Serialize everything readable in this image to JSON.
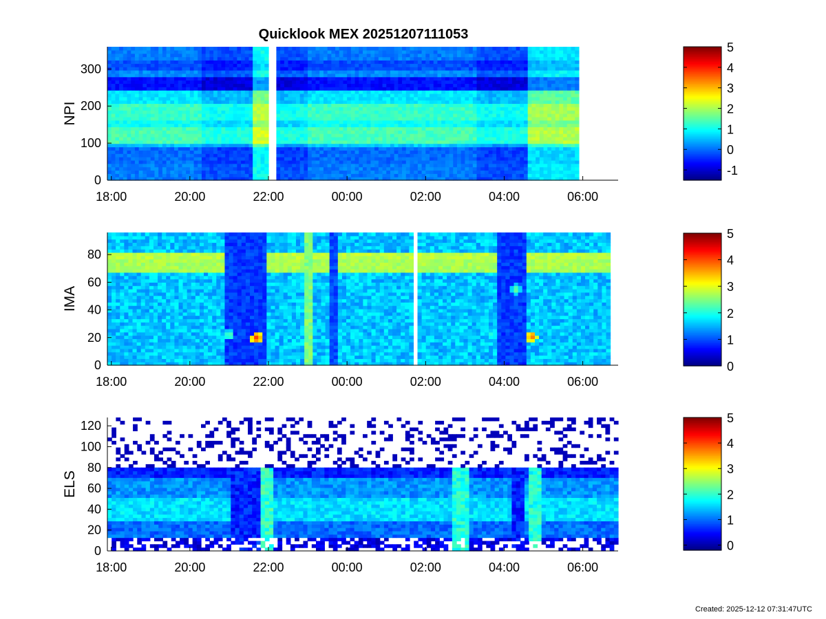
{
  "figure": {
    "title": "Quicklook MEX 20251207111053",
    "footer": "Created: 2025-12-12 07:31:47UTC"
  },
  "colormap": [
    "#00007f",
    "#0000ff",
    "#007fff",
    "#00ffff",
    "#7fff7f",
    "#ffff00",
    "#ff7f00",
    "#ff0000",
    "#7f0000"
  ],
  "chart_data": [
    {
      "type": "heatmap",
      "ylabel": "NPI",
      "xticks": [
        "18:00",
        "20:00",
        "22:00",
        "00:00",
        "02:00",
        "04:00",
        "06:00"
      ],
      "xlim_hours": [
        17.9,
        30.9
      ],
      "ylim": [
        0,
        360
      ],
      "yticks": [
        0,
        100,
        200,
        300
      ],
      "data_hours": [
        17.9,
        29.9
      ],
      "gaps_hours": [
        [
          22.0,
          22.2
        ]
      ],
      "colorbar": {
        "range": [
          -1.5,
          5
        ],
        "ticks": [
          -1,
          0,
          1,
          2,
          3,
          4,
          5
        ]
      },
      "bands": [
        {
          "y": [
            0,
            45
          ],
          "value": 0.1
        },
        {
          "y": [
            45,
            90
          ],
          "value": 0.0
        },
        {
          "y": [
            90,
            100
          ],
          "value": 0.6
        },
        {
          "y": [
            100,
            140
          ],
          "value": 1.4
        },
        {
          "y": [
            140,
            160
          ],
          "value": 1.0
        },
        {
          "y": [
            160,
            210
          ],
          "value": 1.3
        },
        {
          "y": [
            210,
            240
          ],
          "value": 0.8
        },
        {
          "y": [
            240,
            280
          ],
          "value": -0.6
        },
        {
          "y": [
            280,
            300
          ],
          "value": 0.2
        },
        {
          "y": [
            300,
            325
          ],
          "value": -0.2
        },
        {
          "y": [
            325,
            360
          ],
          "value": 0.1
        }
      ],
      "segments": [
        {
          "x": [
            17.9,
            20.3
          ],
          "offset": 0.0
        },
        {
          "x": [
            20.3,
            21.6
          ],
          "offset": -0.3
        },
        {
          "x": [
            21.6,
            22.0
          ],
          "offset": 0.9
        },
        {
          "x": [
            22.2,
            23.0
          ],
          "offset": -0.3
        },
        {
          "x": [
            23.0,
            25.8
          ],
          "offset": 0.0
        },
        {
          "x": [
            25.8,
            27.3
          ],
          "offset": 0.0
        },
        {
          "x": [
            27.3,
            28.6
          ],
          "offset": -0.3
        },
        {
          "x": [
            28.6,
            29.9
          ],
          "offset": 0.7
        }
      ]
    },
    {
      "type": "heatmap",
      "ylabel": "IMA",
      "xticks": [
        "18:00",
        "20:00",
        "22:00",
        "00:00",
        "02:00",
        "04:00",
        "06:00"
      ],
      "xlim_hours": [
        17.9,
        30.9
      ],
      "ylim": [
        0,
        96
      ],
      "yticks": [
        0,
        20,
        40,
        60,
        80
      ],
      "data_hours": [
        17.9,
        30.7
      ],
      "gaps_hours": [
        [
          25.65,
          25.75
        ]
      ],
      "colorbar": {
        "range": [
          0,
          5
        ],
        "ticks": [
          0,
          1,
          2,
          3,
          4,
          5
        ]
      },
      "background_value": 1.6,
      "bands": [
        {
          "y": [
            70,
            74
          ],
          "value": 2.7
        },
        {
          "y": [
            76,
            80
          ],
          "value": 2.8
        }
      ],
      "segments": [
        {
          "x": [
            20.9,
            22.0
          ],
          "value": 0.9
        },
        {
          "x": [
            22.9,
            23.15
          ],
          "value": 2.5
        },
        {
          "x": [
            23.6,
            23.75
          ],
          "value": 1.0
        },
        {
          "x": [
            27.85,
            28.55
          ],
          "value": 0.9
        }
      ],
      "hotspots": [
        {
          "x": 21.7,
          "y": 20,
          "value": 4.2
        },
        {
          "x": 21.0,
          "y": 22,
          "value": 2.6
        },
        {
          "x": 28.7,
          "y": 21,
          "value": 4.0
        },
        {
          "x": 27.7,
          "y": 22,
          "value": 2.4
        },
        {
          "x": 28.3,
          "y": 55,
          "value": 2.6
        }
      ]
    },
    {
      "type": "heatmap",
      "ylabel": "ELS",
      "xticks": [
        "18:00",
        "20:00",
        "22:00",
        "00:00",
        "02:00",
        "04:00",
        "06:00"
      ],
      "xlim_hours": [
        17.9,
        30.9
      ],
      "ylim": [
        0,
        128
      ],
      "yticks": [
        0,
        20,
        40,
        60,
        80,
        100,
        120
      ],
      "data_hours": [
        17.9,
        30.9
      ],
      "gaps_hours": [],
      "colorbar": {
        "range": [
          -0.2,
          5
        ],
        "ticks": [
          0,
          1,
          2,
          3,
          4,
          5
        ]
      },
      "bands": [
        {
          "y": [
            0,
            14
          ],
          "value": 0.3
        },
        {
          "y": [
            14,
            28
          ],
          "value": 1.0
        },
        {
          "y": [
            28,
            50
          ],
          "value": 1.6
        },
        {
          "y": [
            50,
            70
          ],
          "value": 1.2
        },
        {
          "y": [
            70,
            80
          ],
          "value": 0.6
        },
        {
          "y": [
            80,
            128
          ],
          "value": 0.1
        }
      ],
      "segments": [
        {
          "x": [
            21.0,
            21.8
          ],
          "value": 0.6
        },
        {
          "x": [
            21.8,
            22.1
          ],
          "value": 2.0
        },
        {
          "x": [
            26.7,
            27.1
          ],
          "value": 1.9
        },
        {
          "x": [
            28.2,
            28.5
          ],
          "value": 0.6
        },
        {
          "x": [
            28.6,
            29.0
          ],
          "value": 1.9
        }
      ]
    }
  ]
}
